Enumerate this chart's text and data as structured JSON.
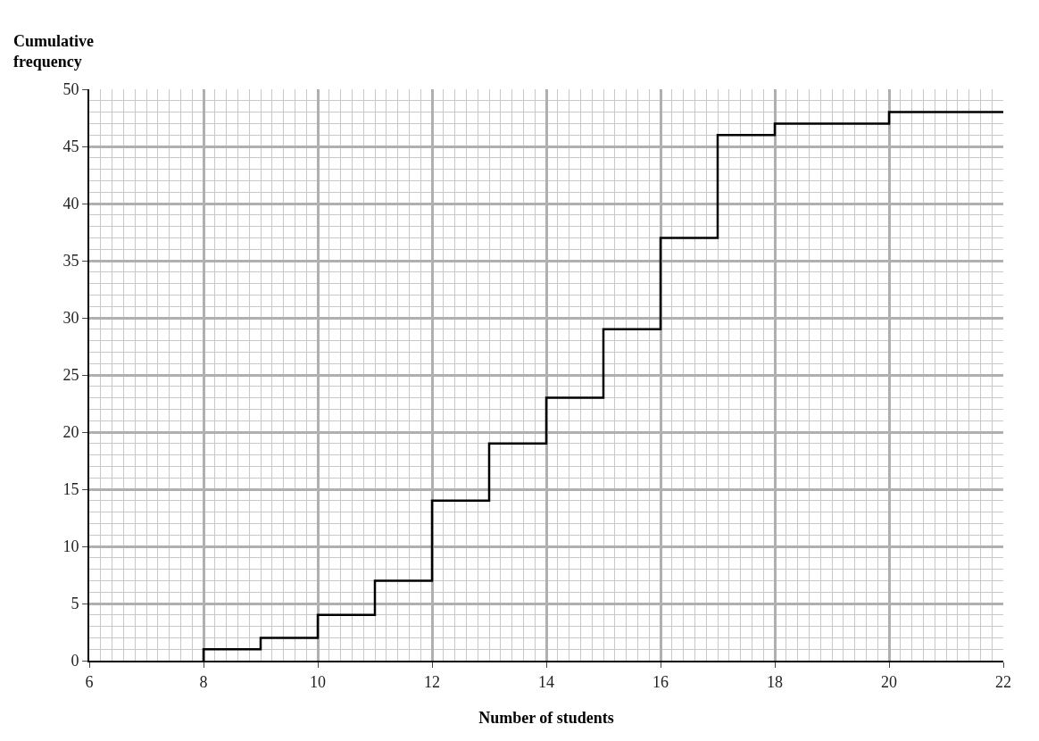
{
  "chart_data": {
    "type": "step",
    "xlabel": "Number of students",
    "ylabel": "Cumulative frequency",
    "x": [
      8,
      8,
      9,
      10,
      11,
      12,
      13,
      14,
      15,
      16,
      17,
      18,
      20,
      22
    ],
    "series": [
      {
        "color": "#000000",
        "values": [
          0,
          1,
          2,
          4,
          7,
          14,
          19,
          23,
          29,
          37,
          46,
          47,
          48,
          48
        ]
      }
    ],
    "xlim": [
      6,
      22
    ],
    "xticks": [
      6,
      8,
      10,
      12,
      14,
      16,
      18,
      20,
      22
    ],
    "ylim": [
      0,
      50
    ],
    "yticks": [
      0,
      5,
      10,
      15,
      20,
      25,
      30,
      35,
      40,
      45,
      50
    ],
    "grid": true
  }
}
